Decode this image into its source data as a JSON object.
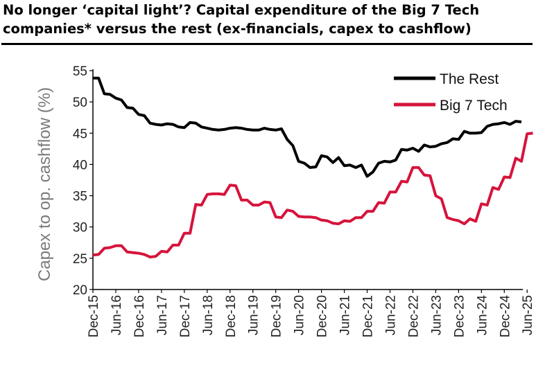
{
  "title_line1": "No longer ‘capital light’? Capital expenditure of the Big 7 Tech",
  "title_line2": "companies* versus the rest (ex-financials, capex to cashflow)",
  "chart_data": {
    "type": "line",
    "title": "No longer ‘capital light’? Capital expenditure of the Big 7 Tech companies* versus the rest (ex-financials, capex to cashflow)",
    "xlabel": "",
    "ylabel": "Capex to op. cashflow (%)",
    "ylim": [
      20,
      55
    ],
    "yticks": [
      20,
      25,
      30,
      35,
      40,
      45,
      50,
      55
    ],
    "xtick_labels": [
      "Dec-15",
      "Jun-16",
      "Dec-16",
      "Jun-17",
      "Dec-17",
      "Jun-18",
      "Dec-18",
      "Jun-19",
      "Dec-19",
      "Jun-20",
      "Dec-20",
      "Jun-21",
      "Dec-21",
      "Jun-22",
      "Dec-22",
      "Jun-23",
      "Dec-23",
      "Jun-24",
      "Dec-24",
      "Jun-25"
    ],
    "grid": false,
    "legend_position": "top-right",
    "series": [
      {
        "name": "The Rest",
        "color": "#000000",
        "points": [
          [
            0,
            53.8
          ],
          [
            1,
            53.8
          ],
          [
            2,
            51.3
          ],
          [
            3,
            51.2
          ],
          [
            4,
            50.6
          ],
          [
            5,
            50.3
          ],
          [
            6,
            49.1
          ],
          [
            7,
            49.0
          ],
          [
            8,
            48.0
          ],
          [
            9,
            47.8
          ],
          [
            10,
            46.6
          ],
          [
            11,
            46.4
          ],
          [
            12,
            46.3
          ],
          [
            13,
            46.5
          ],
          [
            14,
            46.4
          ],
          [
            15,
            46.0
          ],
          [
            16,
            45.9
          ],
          [
            17,
            46.7
          ],
          [
            18,
            46.6
          ],
          [
            19,
            46.0
          ],
          [
            20,
            45.8
          ],
          [
            21,
            45.6
          ],
          [
            22,
            45.5
          ],
          [
            23,
            45.6
          ],
          [
            24,
            45.8
          ],
          [
            25,
            45.9
          ],
          [
            26,
            45.8
          ],
          [
            27,
            45.6
          ],
          [
            28,
            45.5
          ],
          [
            29,
            45.5
          ],
          [
            30,
            45.8
          ],
          [
            31,
            45.6
          ],
          [
            32,
            45.5
          ],
          [
            33,
            45.7
          ],
          [
            34,
            44.0
          ],
          [
            35,
            43.0
          ],
          [
            36,
            40.5
          ],
          [
            37,
            40.2
          ],
          [
            38,
            39.5
          ],
          [
            39,
            39.6
          ],
          [
            40,
            41.4
          ],
          [
            41,
            41.2
          ],
          [
            42,
            40.3
          ],
          [
            43,
            41.1
          ],
          [
            44,
            39.8
          ],
          [
            45,
            39.9
          ],
          [
            46,
            39.5
          ],
          [
            47,
            39.9
          ],
          [
            48,
            38.1
          ],
          [
            49,
            38.8
          ],
          [
            50,
            40.2
          ],
          [
            51,
            40.5
          ],
          [
            52,
            40.4
          ],
          [
            53,
            40.7
          ],
          [
            54,
            42.4
          ],
          [
            55,
            42.3
          ],
          [
            56,
            42.6
          ],
          [
            57,
            42.1
          ],
          [
            58,
            43.1
          ],
          [
            59,
            42.8
          ],
          [
            60,
            42.9
          ],
          [
            61,
            43.3
          ],
          [
            62,
            43.5
          ],
          [
            63,
            44.1
          ],
          [
            64,
            44.0
          ],
          [
            65,
            45.3
          ],
          [
            66,
            45.0
          ],
          [
            67,
            45.0
          ],
          [
            68,
            45.1
          ],
          [
            69,
            46.1
          ],
          [
            70,
            46.4
          ],
          [
            71,
            46.5
          ],
          [
            72,
            46.7
          ],
          [
            73,
            46.4
          ],
          [
            74,
            46.9
          ],
          [
            75,
            46.8
          ]
        ]
      },
      {
        "name": "Big 7 Tech",
        "color": "#d6143c",
        "points": [
          [
            0,
            25.5
          ],
          [
            1,
            25.6
          ],
          [
            2,
            26.6
          ],
          [
            3,
            26.7
          ],
          [
            4,
            27.0
          ],
          [
            5,
            27.0
          ],
          [
            6,
            26.0
          ],
          [
            7,
            25.9
          ],
          [
            8,
            25.8
          ],
          [
            9,
            25.6
          ],
          [
            10,
            25.2
          ],
          [
            11,
            25.3
          ],
          [
            12,
            26.1
          ],
          [
            13,
            26.0
          ],
          [
            14,
            27.1
          ],
          [
            15,
            27.1
          ],
          [
            16,
            29.0
          ],
          [
            17,
            29.0
          ],
          [
            18,
            33.6
          ],
          [
            19,
            33.5
          ],
          [
            20,
            35.2
          ],
          [
            21,
            35.3
          ],
          [
            22,
            35.3
          ],
          [
            23,
            35.2
          ],
          [
            24,
            36.7
          ],
          [
            25,
            36.6
          ],
          [
            26,
            34.3
          ],
          [
            27,
            34.3
          ],
          [
            28,
            33.5
          ],
          [
            29,
            33.5
          ],
          [
            30,
            34.0
          ],
          [
            31,
            33.9
          ],
          [
            32,
            31.6
          ],
          [
            33,
            31.5
          ],
          [
            34,
            32.7
          ],
          [
            35,
            32.5
          ],
          [
            36,
            31.7
          ],
          [
            37,
            31.6
          ],
          [
            38,
            31.6
          ],
          [
            39,
            31.5
          ],
          [
            40,
            31.1
          ],
          [
            41,
            31.0
          ],
          [
            42,
            30.6
          ],
          [
            43,
            30.5
          ],
          [
            44,
            31.0
          ],
          [
            45,
            30.9
          ],
          [
            46,
            31.5
          ],
          [
            47,
            31.5
          ],
          [
            48,
            32.5
          ],
          [
            49,
            32.5
          ],
          [
            50,
            33.9
          ],
          [
            51,
            33.8
          ],
          [
            52,
            35.6
          ],
          [
            53,
            35.6
          ],
          [
            54,
            37.3
          ],
          [
            55,
            37.2
          ],
          [
            56,
            39.5
          ],
          [
            57,
            39.5
          ],
          [
            58,
            38.3
          ],
          [
            59,
            38.2
          ],
          [
            60,
            35.0
          ],
          [
            61,
            34.5
          ],
          [
            62,
            31.5
          ],
          [
            63,
            31.2
          ],
          [
            64,
            31.0
          ],
          [
            65,
            30.5
          ],
          [
            66,
            31.3
          ],
          [
            67,
            30.9
          ],
          [
            68,
            33.7
          ],
          [
            69,
            33.5
          ],
          [
            70,
            36.3
          ],
          [
            71,
            36.0
          ],
          [
            72,
            38.0
          ],
          [
            73,
            37.9
          ],
          [
            74,
            41.0
          ],
          [
            75,
            40.5
          ],
          [
            76,
            44.9
          ],
          [
            77,
            45.0
          ]
        ]
      }
    ]
  }
}
